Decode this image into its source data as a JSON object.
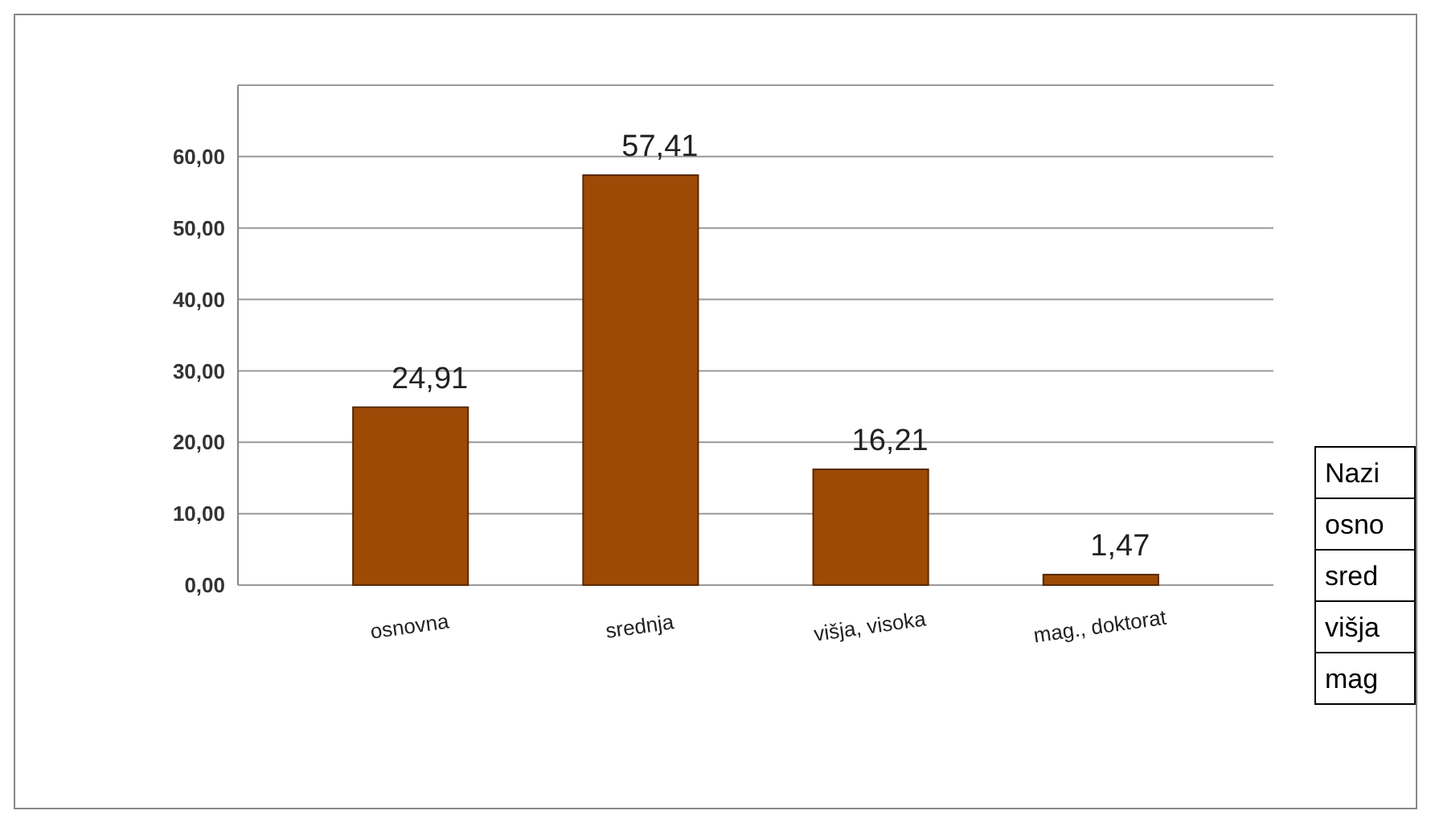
{
  "chart_data": {
    "type": "bar",
    "categories": [
      "osnovna",
      "srednja",
      "višja, visoka",
      "mag., doktorat"
    ],
    "values": [
      24.91,
      57.41,
      16.21,
      1.47
    ],
    "color": "#9c4a06",
    "value_labels": [
      "24,91",
      "57,41",
      "16,21",
      "1,47"
    ],
    "ylim": [
      0,
      70
    ],
    "yticks": [
      {
        "value": 0,
        "label": "0,00"
      },
      {
        "value": 10,
        "label": "10,00"
      },
      {
        "value": 20,
        "label": "20,00"
      },
      {
        "value": 30,
        "label": "30,00"
      },
      {
        "value": 40,
        "label": "40,00"
      },
      {
        "value": 50,
        "label": "50,00"
      },
      {
        "value": 60,
        "label": "60,00"
      },
      {
        "value": 70,
        "label": null
      }
    ],
    "grid": "y",
    "annotations": [
      "Nazi",
      "osno",
      "sred",
      "višja",
      "mag"
    ]
  }
}
